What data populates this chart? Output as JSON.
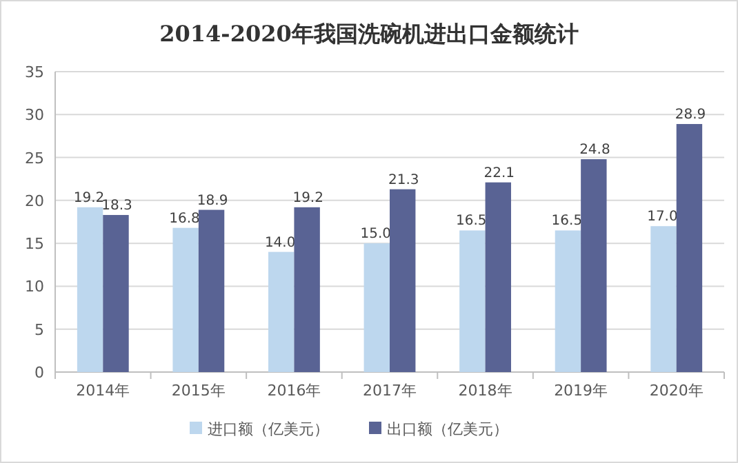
{
  "chart_data": {
    "type": "bar",
    "title": "2014-2020年我国洗碗机进出口金额统计",
    "categories": [
      "2014年",
      "2015年",
      "2016年",
      "2017年",
      "2018年",
      "2019年",
      "2020年"
    ],
    "series": [
      {
        "name": "进口额（亿美元）",
        "color": "#bdd7ee",
        "values": [
          19.2,
          16.8,
          14.0,
          15.0,
          16.5,
          16.5,
          17.0
        ],
        "value_labels": [
          "19.2",
          "16.8",
          "14.0",
          "15.0",
          "16.5",
          "16.5",
          "17.0"
        ]
      },
      {
        "name": "出口额（亿美元）",
        "color": "#596394",
        "values": [
          18.3,
          18.9,
          19.2,
          21.3,
          22.1,
          24.8,
          28.9
        ],
        "value_labels": [
          "18.3",
          "18.9",
          "19.2",
          "21.3",
          "22.1",
          "24.8",
          "28.9"
        ]
      }
    ],
    "ylim": [
      0,
      35
    ],
    "yticks": [
      0,
      5,
      10,
      15,
      20,
      25,
      30,
      35
    ],
    "grid": "y",
    "legend": "bottom"
  }
}
